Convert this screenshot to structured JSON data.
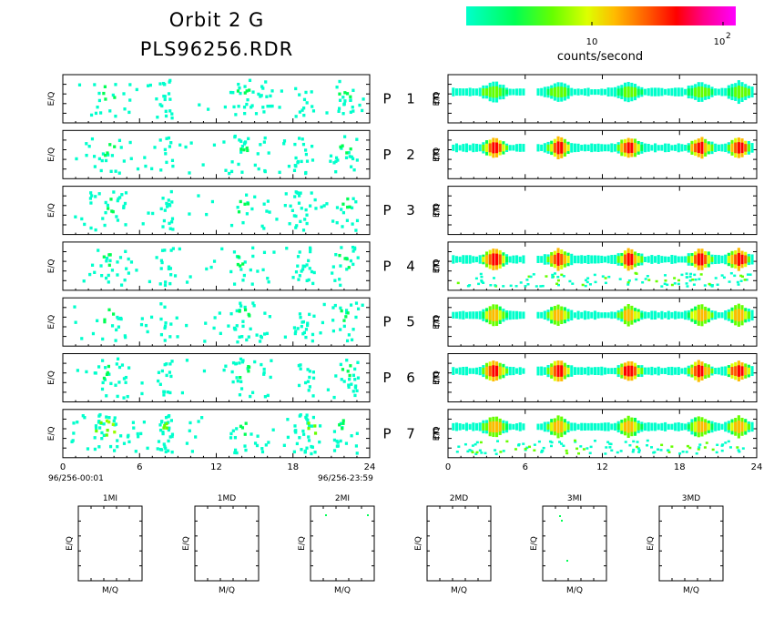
{
  "header": {
    "title_line1": "Orbit 2 G",
    "title_line2": "PLS96256.RDR"
  },
  "colorbar": {
    "label": "counts/second",
    "tick_10": "10",
    "tick_100_base": "10",
    "tick_100_exp": "2",
    "colors": [
      "#00ffcc",
      "#00ff66",
      "#66ff00",
      "#ccff00",
      "#ffcc00",
      "#ff6600",
      "#ff0000",
      "#ff00aa",
      "#ff00ff"
    ]
  },
  "axes": {
    "ylabel": "E/Q",
    "xlabel_mq": "M/Q",
    "ticks": [
      "0",
      "6",
      "12",
      "18",
      "24"
    ],
    "start_time": "96/256-00:01",
    "end_time": "96/256-23:59"
  },
  "rows": [
    {
      "p": "P",
      "num": "1",
      "e": "E"
    },
    {
      "p": "P",
      "num": "2",
      "e": "E"
    },
    {
      "p": "P",
      "num": "3",
      "e": "E"
    },
    {
      "p": "P",
      "num": "4",
      "e": "E"
    },
    {
      "p": "P",
      "num": "5",
      "e": "E"
    },
    {
      "p": "P",
      "num": "6",
      "e": "E"
    },
    {
      "p": "P",
      "num": "7",
      "e": "E"
    }
  ],
  "small_panels": [
    {
      "title": "1MI"
    },
    {
      "title": "1MD"
    },
    {
      "title": "2MI"
    },
    {
      "title": "2MD"
    },
    {
      "title": "3MI"
    },
    {
      "title": "3MD"
    }
  ],
  "chart_data": {
    "type": "heatmap",
    "x_range_hours": [
      0,
      24
    ],
    "x_ticks": [
      0,
      6,
      12,
      18,
      24
    ],
    "color_scale": "log",
    "color_label": "counts/second",
    "color_ticks": [
      10,
      100
    ],
    "left_activity_hours": [
      [
        2,
        5
      ],
      [
        7.5,
        8.5
      ],
      [
        13,
        16
      ],
      [
        18,
        19.5
      ],
      [
        21,
        23
      ]
    ],
    "right_bands": [
      {
        "panel": "P1",
        "intensity": "low",
        "peaks_hours": [
          3.5,
          8.5,
          14,
          19.5,
          22.5
        ]
      },
      {
        "panel": "P2",
        "intensity": "high",
        "peaks_hours": [
          3.5,
          8.5,
          14,
          19.5,
          22.5
        ]
      },
      {
        "panel": "P3",
        "intensity": "none",
        "peaks_hours": []
      },
      {
        "panel": "P4",
        "intensity": "high",
        "peaks_hours": [
          3.5,
          8.5,
          14,
          19.5,
          22.5
        ]
      },
      {
        "panel": "P5",
        "intensity": "medium",
        "peaks_hours": [
          3.5,
          8.5,
          14,
          19.5,
          22.5
        ]
      },
      {
        "panel": "P6",
        "intensity": "high",
        "peaks_hours": [
          3.5,
          8.5,
          14,
          19.5,
          22.5
        ]
      },
      {
        "panel": "P7",
        "intensity": "medium",
        "peaks_hours": [
          3.5,
          8.5,
          14,
          19.5,
          22.5
        ]
      }
    ]
  }
}
